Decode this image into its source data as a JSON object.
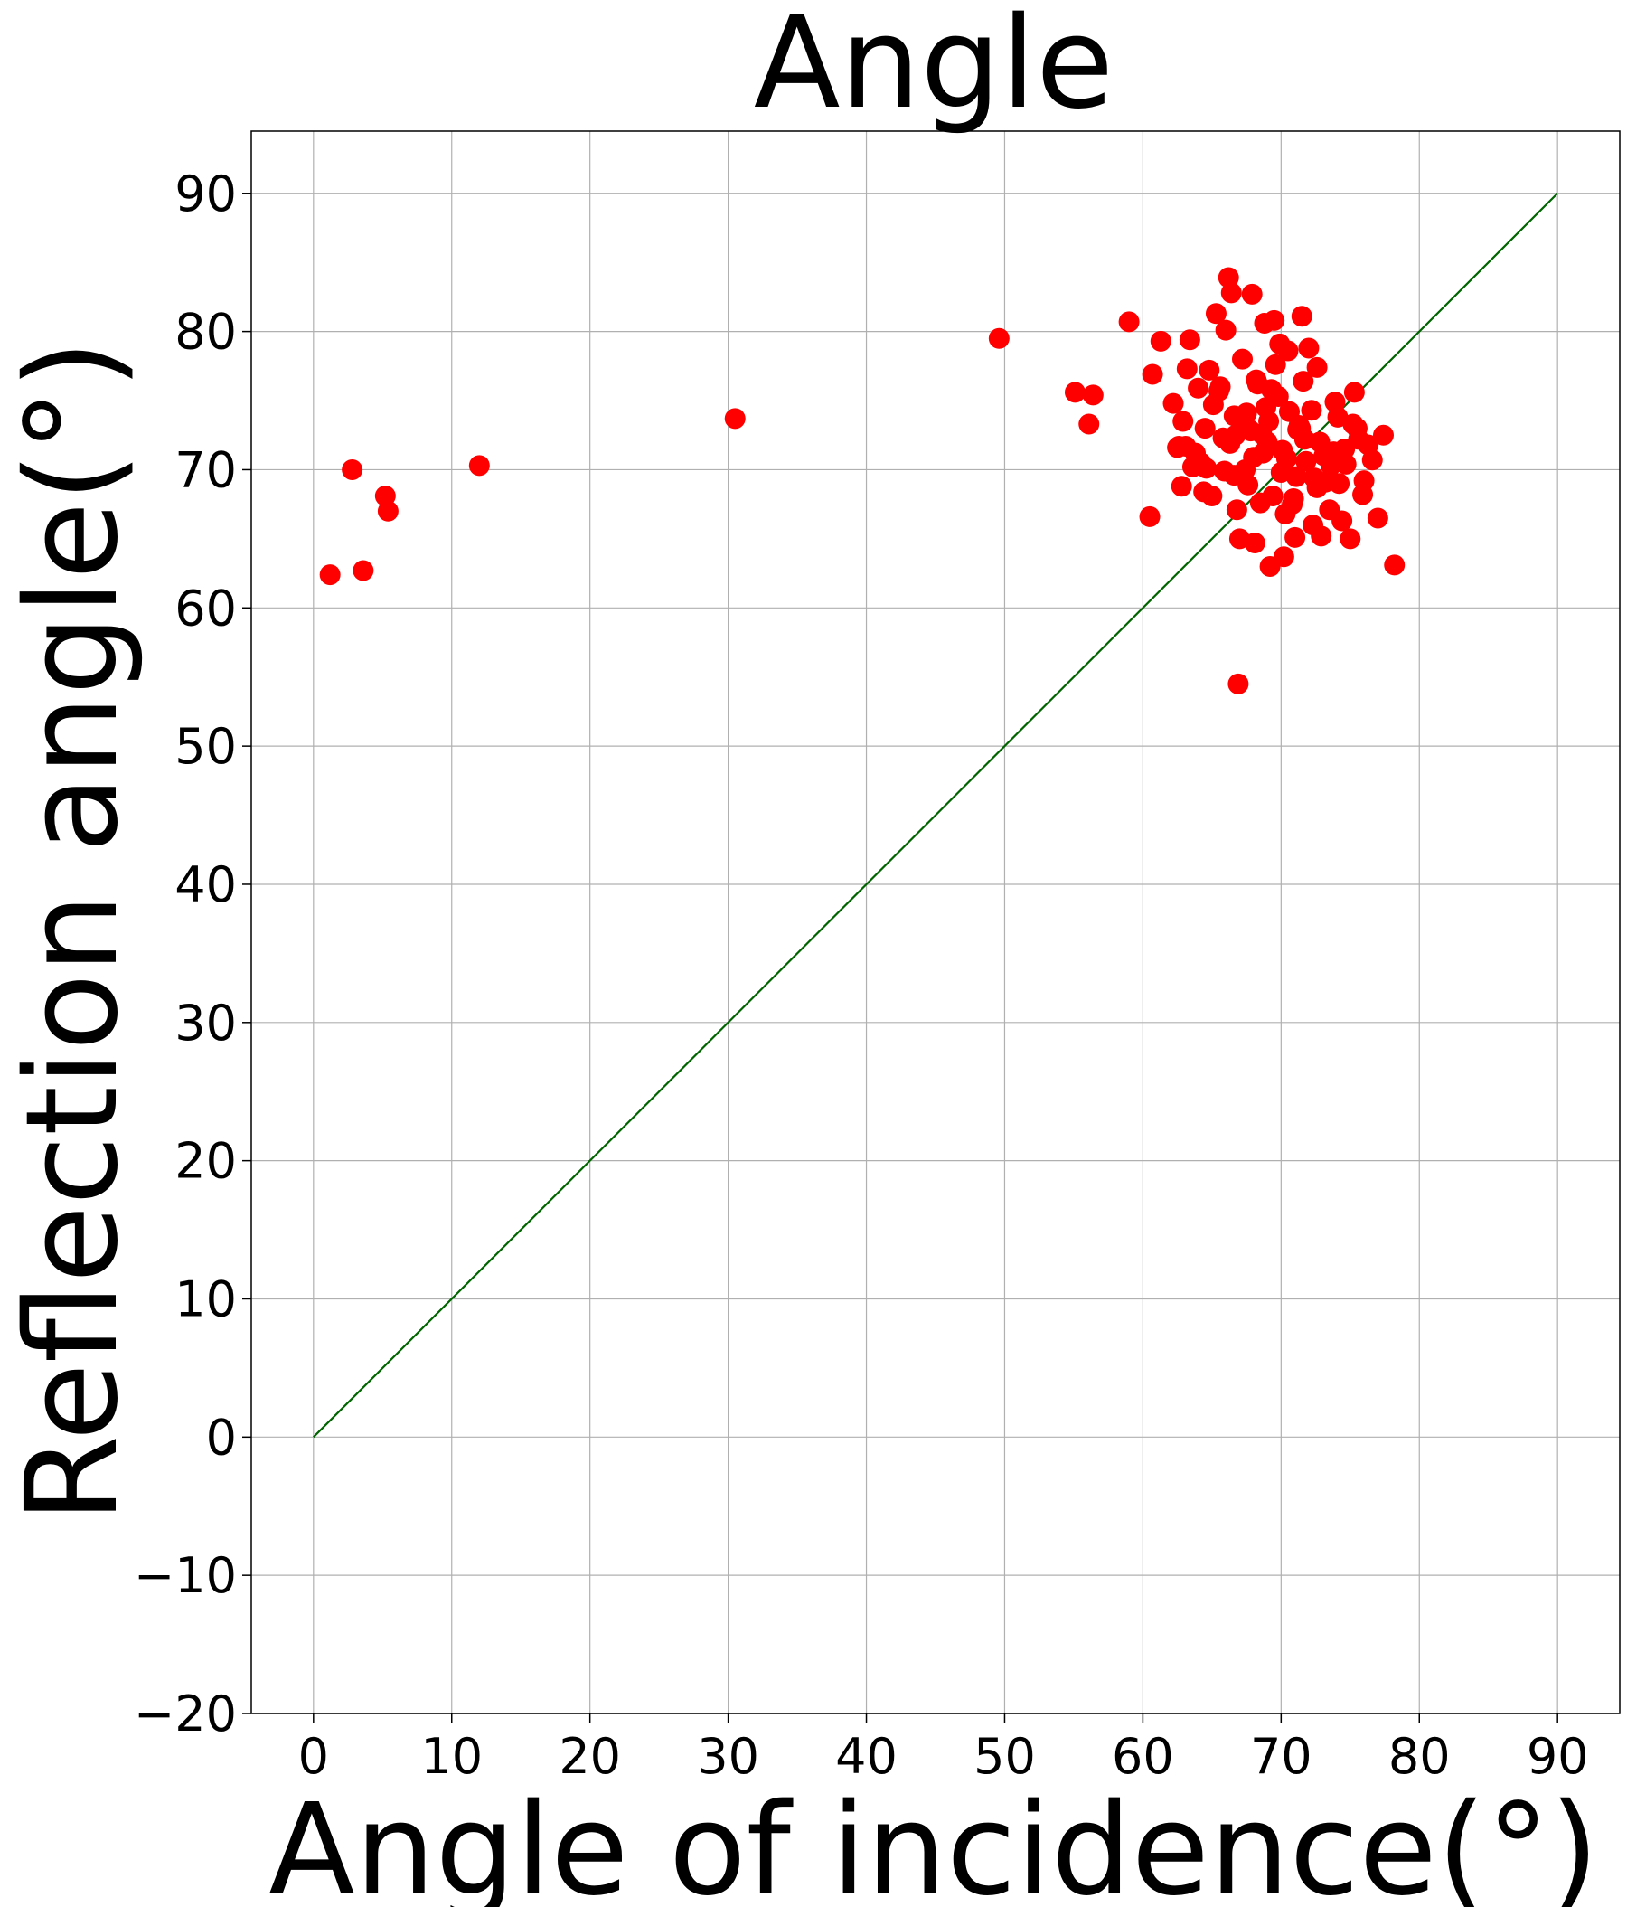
{
  "chart_data": {
    "type": "scatter",
    "title": "Angle",
    "xlabel": "Angle of incidence(°)",
    "ylabel": "Reflection angle(°)",
    "xlim": [
      -4.5,
      94.5
    ],
    "ylim": [
      -20,
      94.5
    ],
    "xticks": [
      0,
      10,
      20,
      30,
      40,
      50,
      60,
      70,
      80,
      90
    ],
    "yticks": [
      -20,
      -10,
      0,
      10,
      20,
      30,
      40,
      50,
      60,
      70,
      80,
      90
    ],
    "xtick_labels": [
      "0",
      "10",
      "20",
      "30",
      "40",
      "50",
      "60",
      "70",
      "80",
      "90"
    ],
    "ytick_labels": [
      "−20",
      "−10",
      "0",
      "10",
      "20",
      "30",
      "40",
      "50",
      "60",
      "70",
      "80",
      "90"
    ],
    "grid": true,
    "series": [
      {
        "kind": "line",
        "color": "#006400",
        "x": [
          0,
          90
        ],
        "y": [
          0,
          90
        ]
      },
      {
        "kind": "scatter",
        "color": "#ff0000",
        "x": [
          1.2,
          2.8,
          3.6,
          5.2,
          5.4,
          12.0,
          30.5,
          49.6,
          55.1,
          56.1,
          56.4,
          59.0,
          60.5,
          60.7,
          61.3,
          62.2,
          62.5,
          62.8,
          62.9,
          63.2,
          63.4,
          63.6,
          64.0,
          64.5,
          64.8,
          65.0,
          65.3,
          65.5,
          65.8,
          66.0,
          66.2,
          66.4,
          66.6,
          66.8,
          67.0,
          67.2,
          67.5,
          67.7,
          67.9,
          68.1,
          68.3,
          68.5,
          68.8,
          69.0,
          69.2,
          69.5,
          69.8,
          70.0,
          70.2,
          70.5,
          70.8,
          71.0,
          71.3,
          71.5,
          71.8,
          72.0,
          72.3,
          72.6,
          72.9,
          73.2,
          73.5,
          73.8,
          74.1,
          74.4,
          74.7,
          75.0,
          75.3,
          75.6,
          75.9,
          76.3,
          76.6,
          77.0,
          77.4,
          78.2,
          66.9,
          67.3,
          68.0,
          69.3,
          70.1,
          71.1,
          72.2,
          73.1,
          74.2,
          75.2,
          64.2,
          65.1,
          66.3,
          67.6,
          68.6,
          69.6,
          70.6,
          71.6,
          72.6,
          73.6,
          63.1,
          64.4,
          65.6,
          66.6,
          67.8,
          68.9,
          70.3,
          71.4,
          72.8,
          74.6,
          65.9,
          66.7,
          67.4,
          68.2,
          68.7,
          69.1,
          69.4,
          69.9,
          70.4,
          70.9,
          71.2,
          71.7,
          72.4,
          73.3,
          73.9,
          75.5,
          76.0,
          62.6,
          63.8,
          64.6
        ],
        "y": [
          62.4,
          70.0,
          62.7,
          68.1,
          67.0,
          70.3,
          73.7,
          79.5,
          75.6,
          73.3,
          75.4,
          80.7,
          66.6,
          76.9,
          79.3,
          74.8,
          71.6,
          68.8,
          73.5,
          77.3,
          79.4,
          70.2,
          75.9,
          73.0,
          77.2,
          68.1,
          81.3,
          75.7,
          72.3,
          80.1,
          83.9,
          82.8,
          69.6,
          67.1,
          65.0,
          78.0,
          74.1,
          72.9,
          82.7,
          64.7,
          76.2,
          67.6,
          80.6,
          72.0,
          63.0,
          80.8,
          75.3,
          69.8,
          63.7,
          78.6,
          67.5,
          65.1,
          73.2,
          81.1,
          70.6,
          78.8,
          66.0,
          77.4,
          65.2,
          69.1,
          67.1,
          71.3,
          73.8,
          66.3,
          70.4,
          65.0,
          75.6,
          72.2,
          68.2,
          71.8,
          70.7,
          66.5,
          72.5,
          63.1,
          54.5,
          73.7,
          70.9,
          75.8,
          71.4,
          69.5,
          74.3,
          71.0,
          69.0,
          73.3,
          70.5,
          74.7,
          71.9,
          68.9,
          72.6,
          77.6,
          74.2,
          76.4,
          68.7,
          70.3,
          71.7,
          68.4,
          76.0,
          73.9,
          72.8,
          74.5,
          66.8,
          73.0,
          72.0,
          71.5,
          69.9,
          72.5,
          70.0,
          76.5,
          71.2,
          73.5,
          68.1,
          79.1,
          70.8,
          67.9,
          72.9,
          72.2,
          69.4,
          71.0,
          74.9,
          73.0,
          69.2,
          71.7,
          71.2,
          70.1
        ]
      }
    ]
  }
}
